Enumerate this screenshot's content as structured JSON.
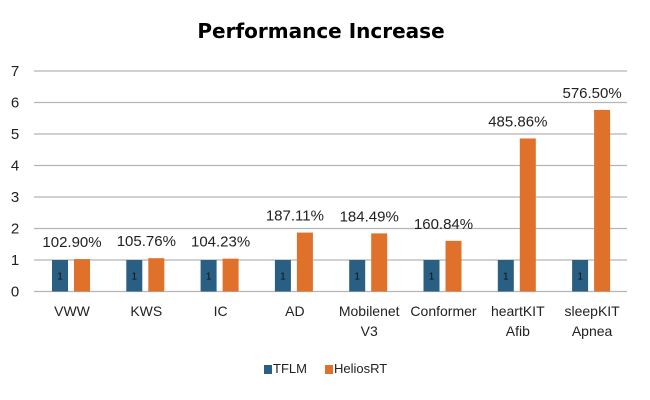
{
  "chart_data": {
    "type": "bar",
    "title": "Performance Increase",
    "xlabel": "",
    "ylabel": "",
    "ylim": [
      0,
      7
    ],
    "yticks": [
      "0",
      "1",
      "2",
      "3",
      "4",
      "5",
      "6",
      "7"
    ],
    "grid": true,
    "legend_position": "bottom",
    "categories": [
      [
        "VWW"
      ],
      [
        "KWS"
      ],
      [
        "IC"
      ],
      [
        "AD"
      ],
      [
        "Mobilenet",
        "V3"
      ],
      [
        "Conformer"
      ],
      [
        "heartKIT",
        "Afib"
      ],
      [
        "sleepKIT",
        "Apnea"
      ]
    ],
    "series": [
      {
        "name": "TFLM",
        "color": "#2a5f84",
        "values": [
          1,
          1,
          1,
          1,
          1,
          1,
          1,
          1
        ],
        "data_labels": [
          "1",
          "1",
          "1",
          "1",
          "1",
          "1",
          "1",
          "1"
        ]
      },
      {
        "name": "HeliosRT",
        "color": "#e0712b",
        "values": [
          1.029,
          1.0576,
          1.0423,
          1.8711,
          1.8449,
          1.6084,
          4.8586,
          5.765
        ],
        "data_labels": [
          "102.90%",
          "105.76%",
          "104.23%",
          "187.11%",
          "184.49%",
          "160.84%",
          "485.86%",
          "576.50%"
        ]
      }
    ]
  }
}
